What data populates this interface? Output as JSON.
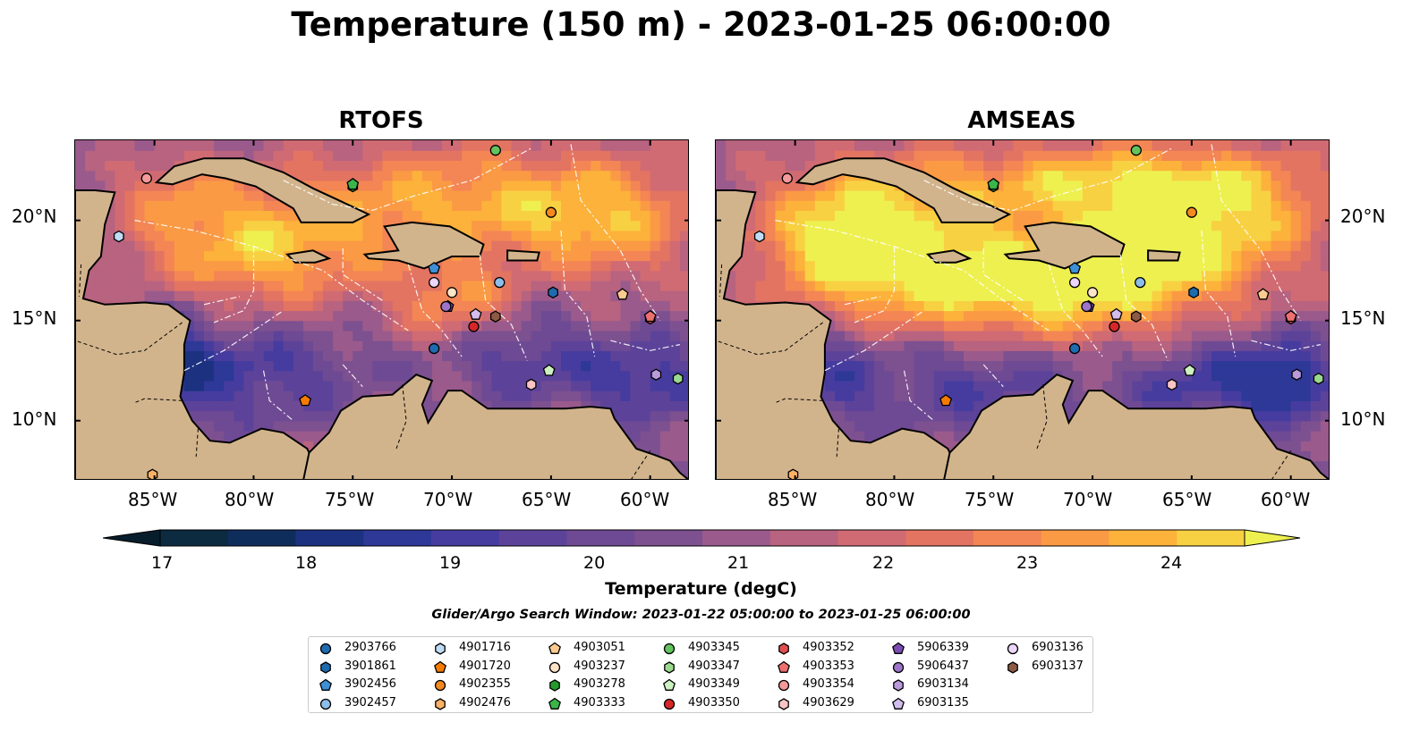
{
  "figure": {
    "title": "Temperature (150 m) - 2023-01-25 06:00:00",
    "search_window": "Glider/Argo Search Window: 2023-01-22 05:00:00 to 2023-01-25 06:00:00"
  },
  "panels": [
    {
      "title": "RTOFS",
      "model": "RTOFS"
    },
    {
      "title": "AMSEAS",
      "model": "AMSEAS"
    }
  ],
  "axes": {
    "x_ticks": [
      "85°W",
      "80°W",
      "75°W",
      "70°W",
      "65°W",
      "60°W"
    ],
    "y_ticks": [
      "20°N",
      "15°N",
      "10°N"
    ]
  },
  "colorbar": {
    "label": "Temperature (degC)",
    "ticks": [
      "17",
      "18",
      "19",
      "20",
      "21",
      "22",
      "23",
      "24"
    ],
    "min": 16.5,
    "max": 24.5,
    "step": 0.5,
    "colors": [
      "#0c2a40",
      "#0f2d5b",
      "#1c3280",
      "#2d3897",
      "#463c9f",
      "#5c4399",
      "#6f4a94",
      "#7d5090",
      "#9a5a8c",
      "#b8637f",
      "#d06b73",
      "#e37462",
      "#f38654",
      "#fb9a44",
      "#fcb23b",
      "#f8d143"
    ],
    "extend_low": "#081d2c",
    "extend_high": "#eef050"
  },
  "legend": {
    "items": [
      {
        "id": "2903766",
        "marker": "circle",
        "color": "#1f6bb0"
      },
      {
        "id": "3901861",
        "marker": "hexagon",
        "color": "#1f6bb0"
      },
      {
        "id": "3902456",
        "marker": "pentagon",
        "color": "#3d8fd6"
      },
      {
        "id": "3902457",
        "marker": "circle",
        "color": "#8dbde9"
      },
      {
        "id": "4901716",
        "marker": "hexagon",
        "color": "#bfdcf5"
      },
      {
        "id": "4901720",
        "marker": "pentagon",
        "color": "#f57c00"
      },
      {
        "id": "4902355",
        "marker": "circle",
        "color": "#f5891f"
      },
      {
        "id": "4902476",
        "marker": "hexagon",
        "color": "#fbb064"
      },
      {
        "id": "4903051",
        "marker": "pentagon",
        "color": "#fdca8f"
      },
      {
        "id": "4903237",
        "marker": "circle",
        "color": "#fde3c8"
      },
      {
        "id": "4903278",
        "marker": "hexagon",
        "color": "#249b2e"
      },
      {
        "id": "4903333",
        "marker": "pentagon",
        "color": "#39b54a"
      },
      {
        "id": "4903345",
        "marker": "circle",
        "color": "#63c35e"
      },
      {
        "id": "4903347",
        "marker": "hexagon",
        "color": "#9ad98d"
      },
      {
        "id": "4903349",
        "marker": "pentagon",
        "color": "#cdf0c1"
      },
      {
        "id": "4903350",
        "marker": "circle",
        "color": "#d62728"
      },
      {
        "id": "4903352",
        "marker": "hexagon",
        "color": "#e04f4f"
      },
      {
        "id": "4903353",
        "marker": "pentagon",
        "color": "#ee6f6f"
      },
      {
        "id": "4903354",
        "marker": "circle",
        "color": "#f59a9a"
      },
      {
        "id": "4903629",
        "marker": "hexagon",
        "color": "#fbc4c4"
      },
      {
        "id": "5906339",
        "marker": "pentagon",
        "color": "#7b4db3"
      },
      {
        "id": "5906437",
        "marker": "circle",
        "color": "#9d74c9"
      },
      {
        "id": "6903134",
        "marker": "hexagon",
        "color": "#b99adb"
      },
      {
        "id": "6903135",
        "marker": "pentagon",
        "color": "#d3bdec"
      },
      {
        "id": "6903136",
        "marker": "circle",
        "color": "#ecd6fb"
      },
      {
        "id": "6903137",
        "marker": "hexagon",
        "color": "#8c5a45"
      }
    ]
  },
  "observations": [
    {
      "id": "2903766",
      "lon": -70.9,
      "lat": 13.6
    },
    {
      "id": "3901861",
      "lon": -64.9,
      "lat": 16.4
    },
    {
      "id": "3902456",
      "lon": -70.9,
      "lat": 17.6
    },
    {
      "id": "3902457",
      "lon": -67.6,
      "lat": 16.9
    },
    {
      "id": "4901716",
      "lon": -86.8,
      "lat": 19.2
    },
    {
      "id": "4901720",
      "lon": -77.4,
      "lat": 11.0
    },
    {
      "id": "4902355",
      "lon": -65.0,
      "lat": 20.4
    },
    {
      "id": "4902476",
      "lon": -85.1,
      "lat": 7.3
    },
    {
      "id": "4903051",
      "lon": -61.4,
      "lat": 16.3
    },
    {
      "id": "4903237",
      "lon": -70.0,
      "lat": 16.4
    },
    {
      "id": "4903278",
      "lon": -75.0,
      "lat": 21.7
    },
    {
      "id": "4903333",
      "lon": -75.0,
      "lat": 21.8
    },
    {
      "id": "4903345",
      "lon": -67.8,
      "lat": 23.5
    },
    {
      "id": "4903347",
      "lon": -58.6,
      "lat": 12.1
    },
    {
      "id": "4903349",
      "lon": -65.1,
      "lat": 12.5
    },
    {
      "id": "4903350",
      "lon": -68.9,
      "lat": 14.7
    },
    {
      "id": "4903352",
      "lon": -60.0,
      "lat": 15.1
    },
    {
      "id": "4903353",
      "lon": -60.0,
      "lat": 15.2
    },
    {
      "id": "4903354",
      "lon": -85.4,
      "lat": 22.1
    },
    {
      "id": "4903629",
      "lon": -66.0,
      "lat": 11.8
    },
    {
      "id": "5906339",
      "lon": -70.2,
      "lat": 15.7
    },
    {
      "id": "5906437",
      "lon": -70.3,
      "lat": 15.7
    },
    {
      "id": "6903134",
      "lon": -59.7,
      "lat": 12.3
    },
    {
      "id": "6903135",
      "lon": -68.8,
      "lat": 15.3
    },
    {
      "id": "6903136",
      "lon": -70.9,
      "lat": 16.9
    },
    {
      "id": "6903137",
      "lon": -67.8,
      "lat": 15.2
    }
  ]
}
